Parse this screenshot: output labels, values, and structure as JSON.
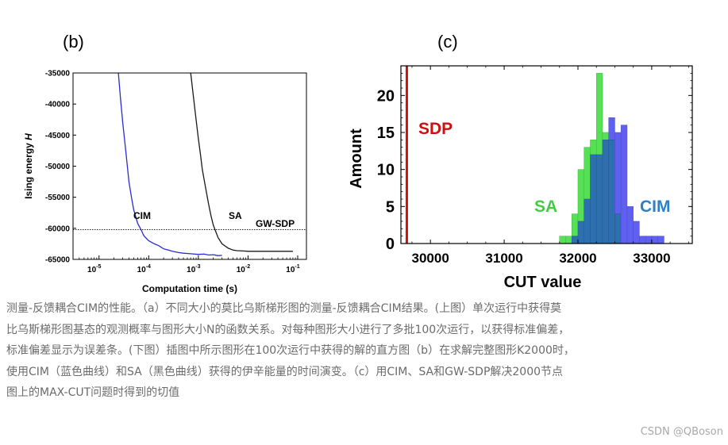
{
  "chart_data": [
    {
      "panel": "(b)",
      "type": "line",
      "xlabel": "Computation time (s)",
      "ylabel": "Ising energy H",
      "xscale": "log",
      "xlim": [
        3e-06,
        0.15
      ],
      "ylim": [
        -65000,
        -35000
      ],
      "xticks": [
        1e-05,
        0.0001,
        0.001,
        0.01,
        0.1
      ],
      "xtick_labels": [
        "10-5",
        "10-4",
        "10-3",
        "10-2",
        "10-1"
      ],
      "yticks": [
        -35000,
        -40000,
        -45000,
        -50000,
        -55000,
        -60000,
        -65000
      ],
      "ytick_labels": [
        "-35000",
        "-40000",
        "-45000",
        "-50000",
        "-55000",
        "-60000",
        "-65000"
      ],
      "series": [
        {
          "name": "CIM",
          "color": "#2b2bd6",
          "x": [
            2.45e-05,
            2.7e-05,
            3e-05,
            3.5e-05,
            4e-05,
            4.5e-05,
            5e-05,
            6e-05,
            7e-05,
            8e-05,
            0.0001,
            0.00013,
            0.00016,
            0.0002,
            0.00025,
            0.0003,
            0.0004,
            0.0005,
            0.0007,
            0.001,
            0.0013,
            0.0016,
            0.002,
            0.0025,
            0.003
          ],
          "y": [
            -35000,
            -39000,
            -43000,
            -48000,
            -52500,
            -55000,
            -57000,
            -59200,
            -60200,
            -61200,
            -62000,
            -62500,
            -62800,
            -63300,
            -63500,
            -63700,
            -63900,
            -64000,
            -64100,
            -64200,
            -64150,
            -64300,
            -64250,
            -64400,
            -64350
          ]
        },
        {
          "name": "SA",
          "color": "#1a1a1a",
          "x": [
            0.0007,
            0.0008,
            0.0009,
            0.001,
            0.0011,
            0.0012,
            0.0014,
            0.0016,
            0.0018,
            0.002,
            0.0025,
            0.003,
            0.004,
            0.005,
            0.006,
            0.008,
            0.01,
            0.015,
            0.02,
            0.03,
            0.05,
            0.08
          ],
          "y": [
            -35000,
            -39000,
            -42500,
            -45500,
            -48000,
            -50500,
            -53500,
            -56000,
            -58000,
            -59500,
            -61500,
            -62500,
            -63200,
            -63500,
            -63600,
            -63650,
            -63700,
            -63700,
            -63700,
            -63700,
            -63700,
            -63700
          ]
        }
      ],
      "reference_line": {
        "name": "GW-SDP",
        "y": -60200
      },
      "annotations": [
        "CIM",
        "SA",
        "GW-SDP"
      ]
    },
    {
      "panel": "(c)",
      "type": "bar",
      "xlabel": "CUT value",
      "ylabel": "Amount",
      "xlim": [
        29600,
        33550
      ],
      "ylim": [
        0,
        24
      ],
      "xticks": [
        30000,
        31000,
        32000,
        33000
      ],
      "xtick_labels": [
        "30000",
        "31000",
        "32000",
        "33000"
      ],
      "yticks": [
        0,
        5,
        10,
        15,
        20
      ],
      "ytick_labels": [
        "0",
        "5",
        "10",
        "15",
        "20"
      ],
      "bin_edges": [
        31750,
        31833,
        31917,
        32000,
        32083,
        32167,
        32250,
        32333,
        32417,
        32500,
        32583,
        32667,
        32750,
        32833,
        32917,
        33000,
        33083,
        33167,
        33250
      ],
      "series": [
        {
          "name": "SA",
          "color": "#55e055",
          "values": [
            1,
            1,
            4,
            10,
            13,
            14,
            23,
            15,
            14,
            4,
            0,
            0,
            0,
            0,
            0,
            0,
            0,
            0
          ]
        },
        {
          "name": "CIM",
          "color": "#6060f0",
          "values": [
            0,
            0,
            1,
            3,
            6,
            12,
            12,
            14,
            17,
            15,
            16,
            5,
            3,
            1,
            1,
            1,
            1,
            0
          ]
        }
      ],
      "overlap_color": "#2e6fb0",
      "reference_line": {
        "name": "SDP",
        "x": 29680,
        "color": "#cc1111"
      },
      "annotations": [
        "SDP",
        "SA",
        "CIM"
      ]
    }
  ],
  "caption_lines": [
    "测量-反馈耦合CIM的性能。（a）不同大小的莫比乌斯梯形图的测量-反馈耦合CIM结果。(上图）单次运行中获得莫",
    "比乌斯梯形图基态的观测概率与图形大小N的函数关系。对每种图形大小进行了多批100次运行，以获得标准偏差，",
    "标准偏差显示为误差条。(下图）插图中所示图形在100次运行中获得的解的直方图（b）在求解完整图形K2000时，",
    "使用CIM（蓝色曲线）和SA（黑色曲线）获得的伊辛能量的时间演变。（c）用CIM、SA和GW-SDP解决2000节点",
    "图上的MAX-CUT问题时得到的切值"
  ],
  "watermark": "CSDN @QBoson"
}
